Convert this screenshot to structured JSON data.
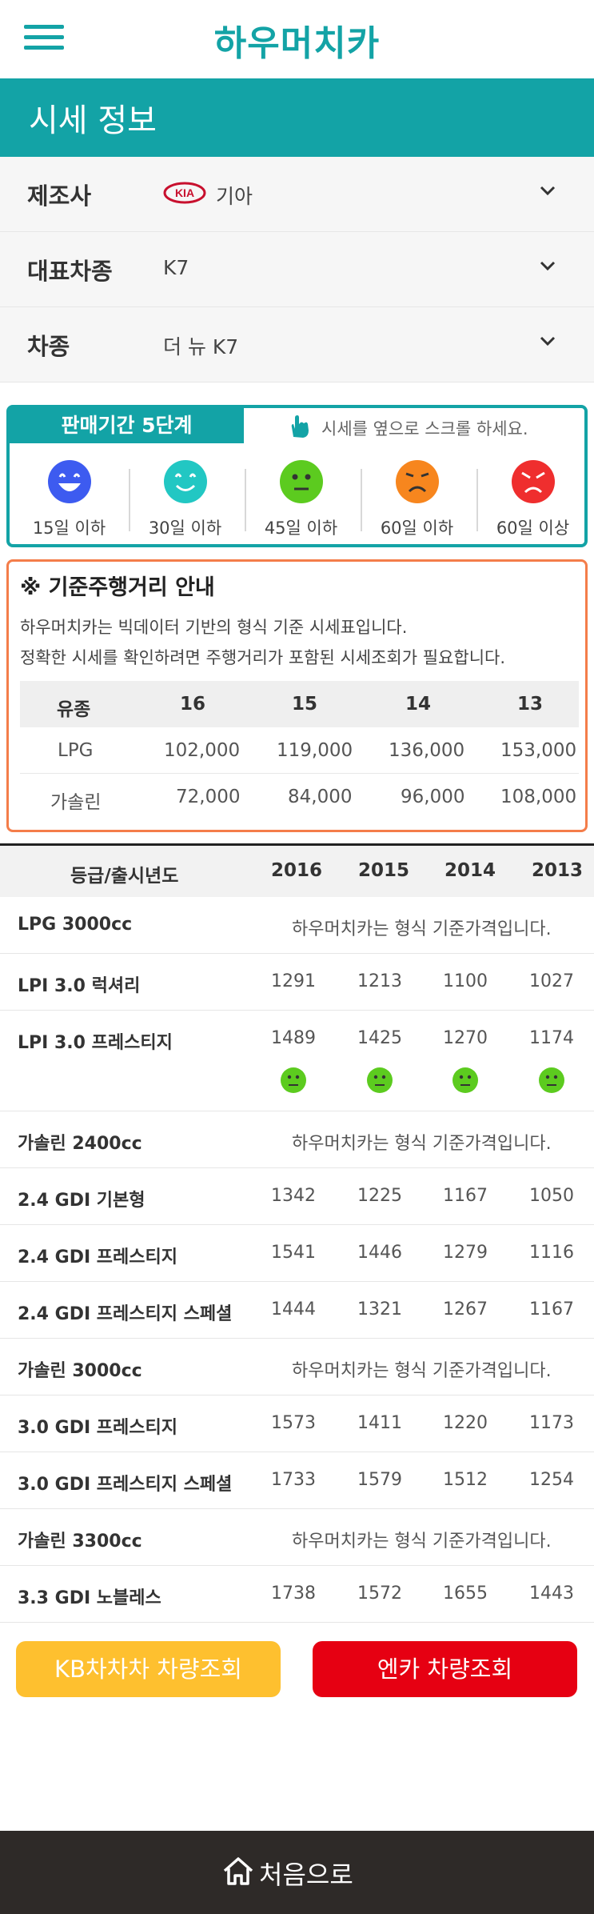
{
  "header": {
    "logo": "하우머치카",
    "menu_icon": "hamburger-menu-icon"
  },
  "page": {
    "title": "시세 정보"
  },
  "selectors": [
    {
      "label": "제조사",
      "value": "기아",
      "brand_logo": "KIA"
    },
    {
      "label": "대표차종",
      "value": "K7"
    },
    {
      "label": "차종",
      "value": "더 뉴 K7"
    }
  ],
  "period": {
    "tab": "판매기간 5단계",
    "hint": "시세를 옆으로 스크롤 하세요.",
    "levels": [
      {
        "label": "15일 이하",
        "color": "#3d5bf0",
        "icon": "very-happy-face-icon"
      },
      {
        "label": "30일 이하",
        "color": "#22c7c3",
        "icon": "happy-face-icon"
      },
      {
        "label": "45일 이하",
        "color": "#5ccb1f",
        "icon": "neutral-face-icon"
      },
      {
        "label": "60일 이하",
        "color": "#f7861e",
        "icon": "sad-face-icon"
      },
      {
        "label": "60일 이상",
        "color": "#ef2e2e",
        "icon": "angry-face-icon"
      }
    ]
  },
  "mileage": {
    "title": "※ 기준주행거리 안내",
    "desc1": "하우머치카는 빅데이터 기반의 형식 기준 시세표입니다.",
    "desc2": "정확한 시세를 확인하려면 주행거리가 포함된 시세조회가 필요합니다.",
    "headers": [
      "유종",
      "16",
      "15",
      "14",
      "13"
    ],
    "rows": [
      [
        "LPG",
        "102,000",
        "119,000",
        "136,000",
        "153,000"
      ],
      [
        "가솔린",
        "72,000",
        "84,000",
        "96,000",
        "108,000"
      ]
    ]
  },
  "price_table": {
    "headers": [
      "등급/출시년도",
      "2016",
      "2015",
      "2014",
      "2013"
    ],
    "group_note": "하우머치카는 형식 기준가격입니다.",
    "rows": [
      {
        "type": "group",
        "name": "LPG 3000cc"
      },
      {
        "type": "trim",
        "name": "LPI 3.0 럭셔리",
        "values": [
          "1291",
          "1213",
          "1100",
          "1027"
        ]
      },
      {
        "type": "trim",
        "name": "LPI 3.0 프레스티지",
        "values": [
          "1489",
          "1425",
          "1270",
          "1174"
        ],
        "status_icon": "neutral-face-icon"
      },
      {
        "type": "group",
        "name": "가솔린 2400cc"
      },
      {
        "type": "trim",
        "name": "2.4 GDI 기본형",
        "values": [
          "1342",
          "1225",
          "1167",
          "1050"
        ]
      },
      {
        "type": "trim",
        "name": "2.4 GDI 프레스티지",
        "values": [
          "1541",
          "1446",
          "1279",
          "1116"
        ]
      },
      {
        "type": "trim",
        "name": "2.4 GDI 프레스티지 스페셜",
        "values": [
          "1444",
          "1321",
          "1267",
          "1167"
        ]
      },
      {
        "type": "group",
        "name": "가솔린 3000cc"
      },
      {
        "type": "trim",
        "name": "3.0 GDI 프레스티지",
        "values": [
          "1573",
          "1411",
          "1220",
          "1173"
        ]
      },
      {
        "type": "trim",
        "name": "3.0 GDI 프레스티지 스페셜",
        "values": [
          "1733",
          "1579",
          "1512",
          "1254"
        ]
      },
      {
        "type": "group",
        "name": "가솔린 3300cc"
      },
      {
        "type": "trim",
        "name": "3.3 GDI 노블레스",
        "values": [
          "1738",
          "1572",
          "1655",
          "1443"
        ]
      }
    ]
  },
  "buttons": {
    "kb": "KB차차차 차량조회",
    "encar": "엔카 차량조회"
  },
  "footer": {
    "label": "처음으로",
    "icon": "home-icon"
  }
}
